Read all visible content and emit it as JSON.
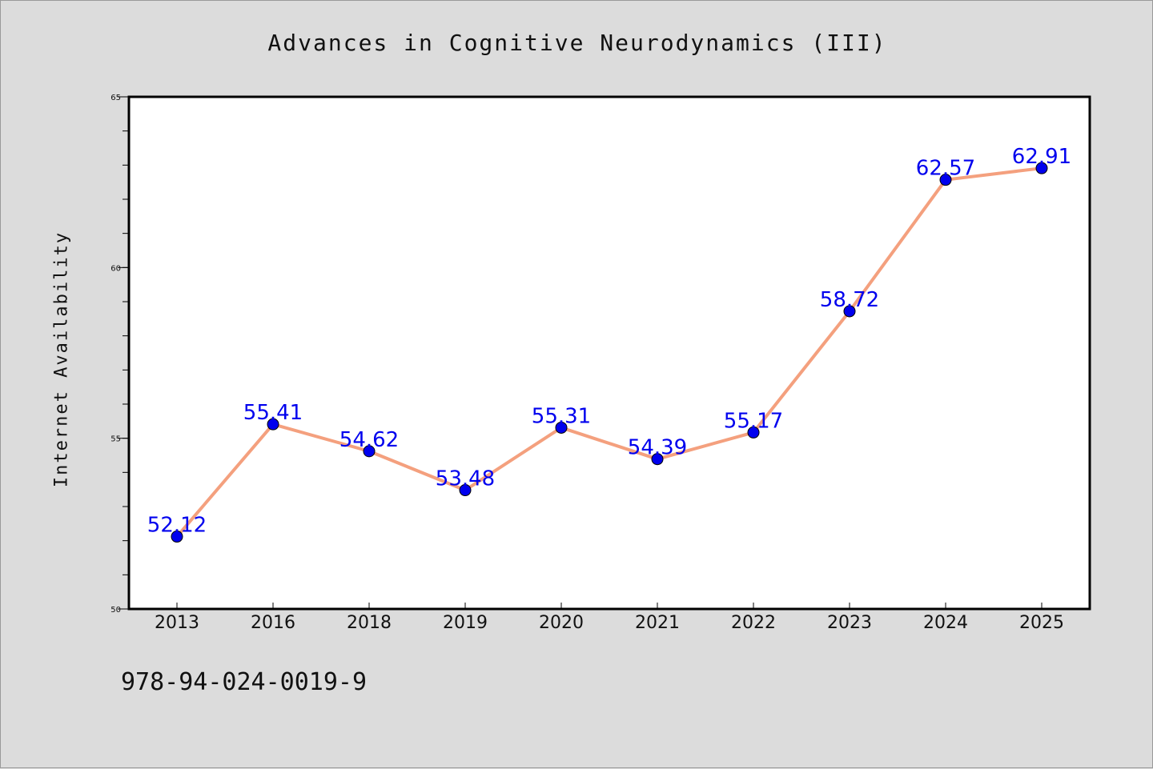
{
  "colors": {
    "background": "#dcdcdc",
    "plot_background": "#ffffff",
    "line": "#f4a07e",
    "marker": "#0000ee",
    "data_label": "#0000ee"
  },
  "footer": {
    "isbn": "978-94-024-0019-9"
  },
  "chart_data": {
    "type": "line",
    "title": "Advances in Cognitive Neurodynamics (III)",
    "xlabel": "",
    "ylabel": "Internet Availability",
    "categories": [
      "2013",
      "2016",
      "2018",
      "2019",
      "2020",
      "2021",
      "2022",
      "2023",
      "2024",
      "2025"
    ],
    "values": [
      52.12,
      55.41,
      54.62,
      53.48,
      55.31,
      54.39,
      55.17,
      58.72,
      62.57,
      62.91
    ],
    "data_labels": [
      "52.12",
      "55.41",
      "54.62",
      "53.48",
      "55.31",
      "54.39",
      "55.17",
      "58.72",
      "62.57",
      "62.91"
    ],
    "ylim": [
      50,
      65
    ],
    "yticks": [
      50,
      55,
      60,
      65
    ],
    "minor_ytick_step": 1,
    "grid": false,
    "legend": "none"
  }
}
